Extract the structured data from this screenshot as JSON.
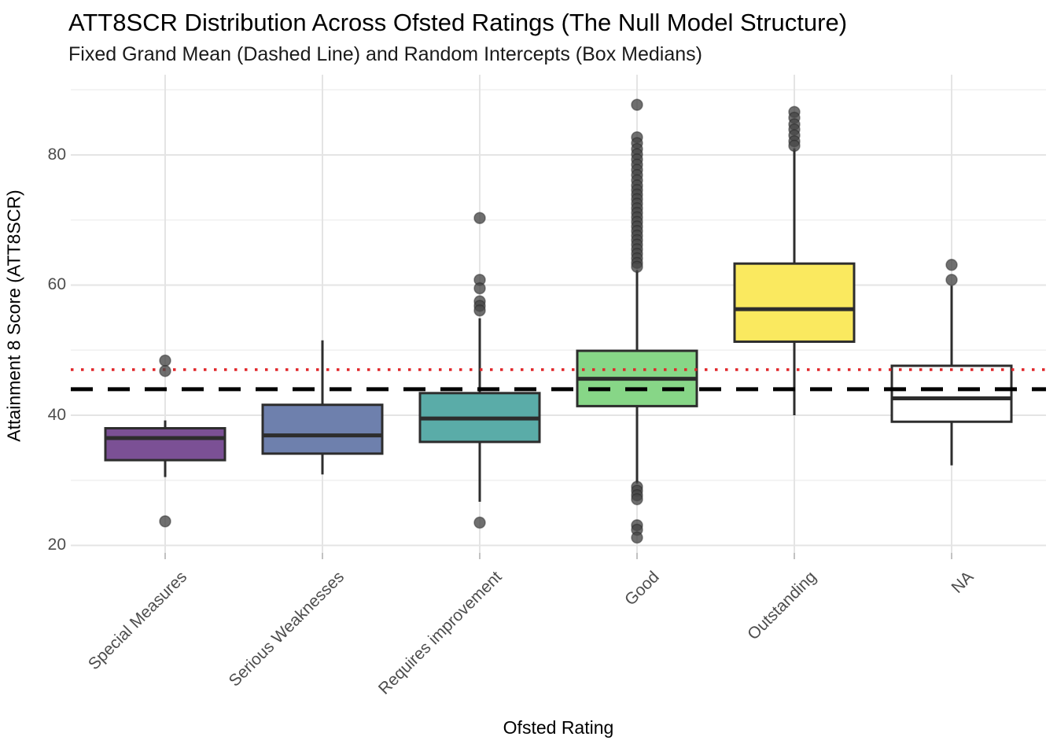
{
  "chart_data": {
    "type": "boxplot",
    "title": "ATT8SCR Distribution Across Ofsted Ratings (The Null Model Structure)",
    "subtitle": "Fixed Grand Mean (Dashed Line) and Random Intercepts (Box Medians)",
    "xlabel": "Ofsted Rating",
    "ylabel": "Attainment 8 Score (ATT8SCR)",
    "categories": [
      "Special Measures",
      "Serious Weaknesses",
      "Requires improvement",
      "Good",
      "Outstanding",
      "NA"
    ],
    "y_tick_labels": [
      "20",
      "40",
      "60",
      "80"
    ],
    "y_ticks": [
      20,
      40,
      60,
      80
    ],
    "y_minor_gridlines": [
      30,
      50,
      70,
      90
    ],
    "ylim": [
      18.85,
      92.32
    ],
    "grid": true,
    "legend": "none",
    "reference_lines": [
      {
        "id": "fixed-grand-mean",
        "value": 44.0,
        "style": "dashed",
        "color": "#000000"
      },
      {
        "id": "upper-reference",
        "value": 47.0,
        "style": "dotted",
        "color": "#e0262a"
      }
    ],
    "series": [
      {
        "category": "Special Measures",
        "color": "#7b5095",
        "whisker_low": 30.5,
        "q1": 33.1,
        "median": 36.5,
        "q3": 38.0,
        "whisker_high": 39.2,
        "outliers": [
          48.4,
          46.8,
          23.7
        ]
      },
      {
        "category": "Serious Weaknesses",
        "color": "#6e80ad",
        "whisker_low": 30.9,
        "q1": 34.1,
        "median": 36.9,
        "q3": 41.6,
        "whisker_high": 51.5,
        "outliers": []
      },
      {
        "category": "Requires improvement",
        "color": "#5aaca8",
        "whisker_low": 26.7,
        "q1": 35.9,
        "median": 39.5,
        "q3": 43.4,
        "whisker_high": 54.9,
        "outliers": [
          70.3,
          60.8,
          59.5,
          57.5,
          56.8,
          56.1,
          23.5
        ]
      },
      {
        "category": "Good",
        "color": "#87d687",
        "whisker_low": 29.5,
        "q1": 41.4,
        "median": 45.6,
        "q3": 49.9,
        "whisker_high": 62.3,
        "outliers": [
          87.7,
          82.7,
          81.8,
          80.9,
          80.1,
          79.3,
          78.5,
          77.7,
          76.9,
          76.1,
          75.3,
          74.6,
          73.9,
          73.2,
          72.5,
          71.8,
          71.1,
          70.4,
          69.7,
          69.0,
          68.3,
          67.6,
          66.9,
          66.2,
          65.5,
          64.8,
          64.1,
          63.4,
          62.8,
          29.0,
          28.4,
          27.7,
          27.1,
          23.1,
          22.4,
          21.2
        ]
      },
      {
        "category": "Outstanding",
        "color": "#fae95f",
        "whisker_low": 40.0,
        "q1": 51.3,
        "median": 56.3,
        "q3": 63.3,
        "whisker_high": 81.0,
        "outliers": [
          86.6,
          85.7,
          84.7,
          83.9,
          83.0,
          82.1,
          81.4
        ]
      },
      {
        "category": "NA",
        "color": "#ffffff",
        "whisker_low": 32.3,
        "q1": 39.0,
        "median": 42.6,
        "q3": 47.6,
        "whisker_high": 59.9,
        "outliers": [
          63.1,
          60.8
        ]
      }
    ],
    "style_colors": {
      "box_border": "#2d2d2d",
      "outlier_fill": "#474747",
      "major_grid": "#e4e4e4",
      "minor_grid": "#f1f1f1",
      "axis_tick_mark": "#c2c2c2",
      "tick_text": "#4d4d4d"
    }
  }
}
